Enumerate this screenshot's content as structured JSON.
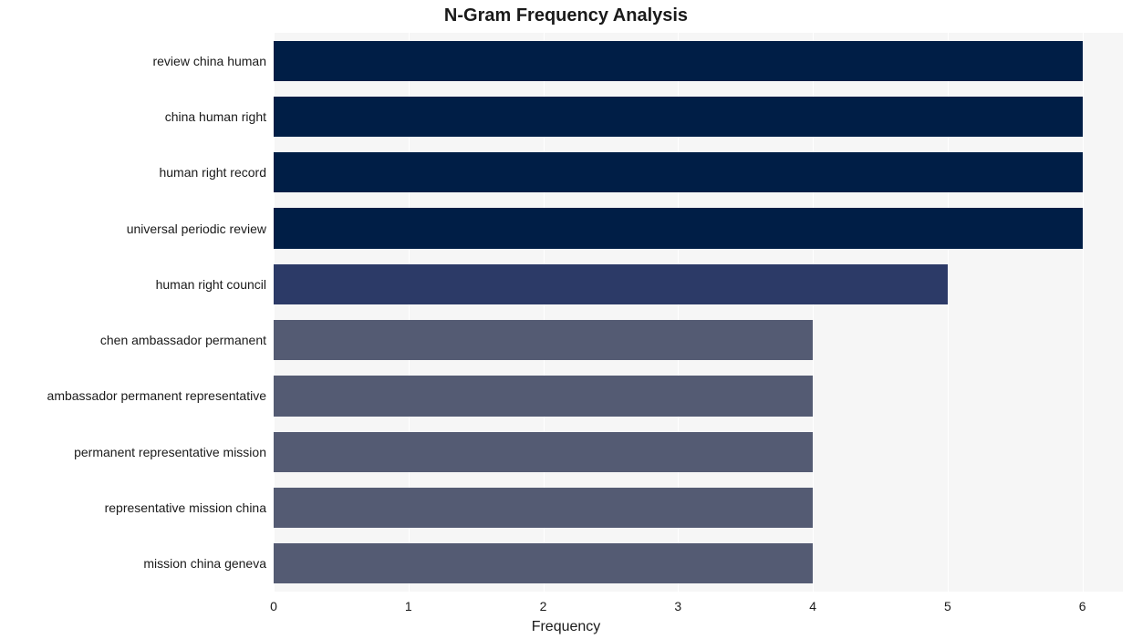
{
  "chart": {
    "type": "bar-horizontal",
    "title": "N-Gram Frequency Analysis",
    "title_fontsize": 20,
    "title_fontweight": "bold",
    "xlabel": "Frequency",
    "xlabel_fontsize": 16,
    "xlim": [
      0,
      6.3
    ],
    "xtick_step": 1,
    "xticks": [
      0,
      1,
      2,
      3,
      4,
      5,
      6
    ],
    "ylabel_fontsize": 14,
    "background_color": "#f6f6f6",
    "grid_color": "#ffffff",
    "bar_height_ratio": 0.72,
    "categories": [
      "review china human",
      "china human right",
      "human right record",
      "universal periodic review",
      "human right council",
      "chen ambassador permanent",
      "ambassador permanent representative",
      "permanent representative mission",
      "representative mission china",
      "mission china geneva"
    ],
    "values": [
      6,
      6,
      6,
      6,
      5,
      4,
      4,
      4,
      4,
      4
    ],
    "bar_colors": [
      "#001e46",
      "#001e46",
      "#001e46",
      "#001e46",
      "#2c3a67",
      "#545b73",
      "#545b73",
      "#545b73",
      "#545b73",
      "#545b73"
    ]
  }
}
